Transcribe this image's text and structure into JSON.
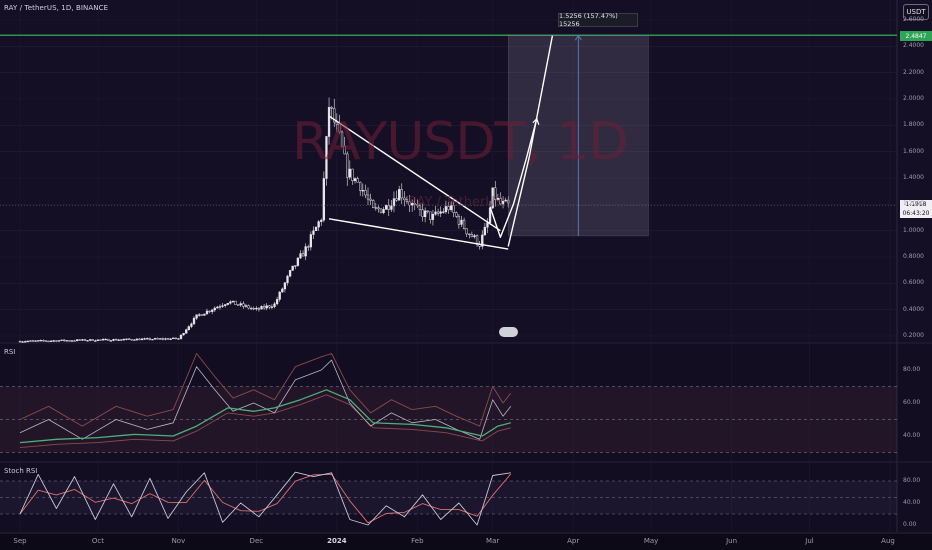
{
  "header": {
    "symbol_line": "RAY / TetherUS, 1D, BINANCE",
    "currency": "USDT",
    "watermark": "RAYUSDT, 1D",
    "watermark_sub": "RAY / TetherUS"
  },
  "price_tags": {
    "target": "2.4847",
    "current_price": "1.1918",
    "current_time": "06:43:20"
  },
  "measure_label": "1.5256 (157.47%) 15256",
  "indicators": {
    "rsi_label": "RSI",
    "stoch_label": "Stoch RSI"
  },
  "colors": {
    "background": "#0d0a17",
    "candle": "#e6e6ee",
    "target_line": "#34c05c",
    "rsi_line": "#b8b8c4",
    "rsi_ma": "#4cb07a",
    "rsi_envelope": "#8a4a52",
    "stoch_k": "#c8c8d4",
    "stoch_d": "#e07070",
    "projection": "#ffffff",
    "measure_arrow": "#5a78b0"
  },
  "chart_data": [
    {
      "type": "candlestick",
      "title": "RAY / TetherUS, 1D, BINANCE",
      "x_labels": [
        "Sep",
        "Oct",
        "Nov",
        "Dec",
        "2024",
        "Feb",
        "Mar",
        "Apr",
        "May",
        "Jun",
        "Jul",
        "Aug"
      ],
      "y_ticks": [
        "2.6000",
        "2.4000",
        "2.2000",
        "2.0000",
        "1.8000",
        "1.6000",
        "1.4000",
        "1.2000",
        "1.0000",
        "0.8000",
        "0.6000",
        "0.4000",
        "0.2000"
      ],
      "ylim": [
        0.2,
        2.6
      ],
      "close_series": [
        {
          "date": "2023-09-01",
          "close": 0.16
        },
        {
          "date": "2023-10-01",
          "close": 0.17
        },
        {
          "date": "2023-11-01",
          "close": 0.18
        },
        {
          "date": "2023-11-08",
          "close": 0.35
        },
        {
          "date": "2023-11-20",
          "close": 0.46
        },
        {
          "date": "2023-12-01",
          "close": 0.4
        },
        {
          "date": "2023-12-08",
          "close": 0.44
        },
        {
          "date": "2023-12-14",
          "close": 0.68
        },
        {
          "date": "2023-12-20",
          "close": 0.86
        },
        {
          "date": "2023-12-26",
          "close": 1.1
        },
        {
          "date": "2023-12-29",
          "close": 1.95
        },
        {
          "date": "2024-01-02",
          "close": 1.7
        },
        {
          "date": "2024-01-05",
          "close": 1.45
        },
        {
          "date": "2024-01-10",
          "close": 1.35
        },
        {
          "date": "2024-01-15",
          "close": 1.15
        },
        {
          "date": "2024-01-20",
          "close": 1.18
        },
        {
          "date": "2024-01-25",
          "close": 1.3
        },
        {
          "date": "2024-02-01",
          "close": 1.15
        },
        {
          "date": "2024-02-07",
          "close": 1.1
        },
        {
          "date": "2024-02-13",
          "close": 1.18
        },
        {
          "date": "2024-02-20",
          "close": 1.0
        },
        {
          "date": "2024-02-25",
          "close": 0.9
        },
        {
          "date": "2024-02-28",
          "close": 1.05
        },
        {
          "date": "2024-03-01",
          "close": 1.28
        },
        {
          "date": "2024-03-04",
          "close": 1.2
        },
        {
          "date": "2024-03-07",
          "close": 1.19
        }
      ],
      "last_price": 1.1918,
      "target_price": 2.4847,
      "measure_change": "1.5256 (157.47%) 15256",
      "pattern": "falling wedge",
      "wedge_upper": [
        {
          "date": "2023-12-29",
          "price": 1.87
        },
        {
          "date": "2024-03-04",
          "price": 1.0
        }
      ],
      "wedge_lower": [
        {
          "date": "2023-12-29",
          "price": 1.09
        },
        {
          "date": "2024-03-07",
          "price": 0.86
        }
      ],
      "projection": [
        {
          "date": "2024-02-29",
          "price": 1.18
        },
        {
          "date": "2024-03-04",
          "price": 0.95
        },
        {
          "date": "2024-03-09",
          "price": 1.2
        },
        {
          "date": "2024-03-14",
          "price": 1.55
        },
        {
          "date": "2024-03-18",
          "price": 1.85
        }
      ],
      "projection_b": [
        {
          "date": "2024-03-07",
          "price": 0.88
        },
        {
          "date": "2024-03-15",
          "price": 1.55
        },
        {
          "date": "2024-03-24",
          "price": 2.48
        }
      ],
      "measure_box": {
        "from_date": "2024-03-07",
        "to_date": "2024-04-30",
        "from_price": 0.96,
        "to_price": 2.4847
      }
    },
    {
      "type": "line",
      "title": "RSI",
      "y_ticks": [
        "80.00",
        "60.00",
        "40.00"
      ],
      "ylim": [
        30,
        90
      ],
      "bands": [
        70,
        50,
        30
      ],
      "rsi": [
        {
          "date": "2023-09-01",
          "value": 42
        },
        {
          "date": "2023-09-12",
          "value": 50
        },
        {
          "date": "2023-09-25",
          "value": 38
        },
        {
          "date": "2023-10-08",
          "value": 50
        },
        {
          "date": "2023-10-20",
          "value": 44
        },
        {
          "date": "2023-10-30",
          "value": 48
        },
        {
          "date": "2023-11-08",
          "value": 82
        },
        {
          "date": "2023-11-15",
          "value": 68
        },
        {
          "date": "2023-11-22",
          "value": 55
        },
        {
          "date": "2023-11-30",
          "value": 60
        },
        {
          "date": "2023-12-08",
          "value": 54
        },
        {
          "date": "2023-12-16",
          "value": 74
        },
        {
          "date": "2023-12-26",
          "value": 80
        },
        {
          "date": "2023-12-30",
          "value": 86
        },
        {
          "date": "2024-01-06",
          "value": 60
        },
        {
          "date": "2024-01-14",
          "value": 46
        },
        {
          "date": "2024-01-22",
          "value": 54
        },
        {
          "date": "2024-01-30",
          "value": 48
        },
        {
          "date": "2024-02-08",
          "value": 50
        },
        {
          "date": "2024-02-16",
          "value": 44
        },
        {
          "date": "2024-02-25",
          "value": 38
        },
        {
          "date": "2024-03-01",
          "value": 62
        },
        {
          "date": "2024-03-05",
          "value": 52
        },
        {
          "date": "2024-03-08",
          "value": 58
        }
      ],
      "rsi_ma": [
        {
          "date": "2023-09-01",
          "value": 36
        },
        {
          "date": "2023-09-15",
          "value": 38
        },
        {
          "date": "2023-10-01",
          "value": 39
        },
        {
          "date": "2023-10-15",
          "value": 41
        },
        {
          "date": "2023-10-30",
          "value": 40
        },
        {
          "date": "2023-11-08",
          "value": 46
        },
        {
          "date": "2023-11-20",
          "value": 57
        },
        {
          "date": "2023-11-30",
          "value": 55
        },
        {
          "date": "2023-12-08",
          "value": 57
        },
        {
          "date": "2023-12-18",
          "value": 62
        },
        {
          "date": "2023-12-28",
          "value": 68
        },
        {
          "date": "2024-01-06",
          "value": 62
        },
        {
          "date": "2024-01-15",
          "value": 48
        },
        {
          "date": "2024-01-30",
          "value": 47
        },
        {
          "date": "2024-02-12",
          "value": 45
        },
        {
          "date": "2024-02-26",
          "value": 40
        },
        {
          "date": "2024-03-03",
          "value": 46
        },
        {
          "date": "2024-03-08",
          "value": 48
        }
      ]
    },
    {
      "type": "line",
      "title": "Stoch RSI",
      "y_ticks": [
        "80.00",
        "40.00",
        "0.00"
      ],
      "ylim": [
        0,
        100
      ],
      "bands": [
        80,
        50,
        20
      ],
      "k": [
        {
          "date": "2023-09-01",
          "value": 20
        },
        {
          "date": "2023-09-08",
          "value": 92
        },
        {
          "date": "2023-09-15",
          "value": 30
        },
        {
          "date": "2023-09-22",
          "value": 88
        },
        {
          "date": "2023-09-30",
          "value": 10
        },
        {
          "date": "2023-10-07",
          "value": 75
        },
        {
          "date": "2023-10-14",
          "value": 15
        },
        {
          "date": "2023-10-21",
          "value": 85
        },
        {
          "date": "2023-10-28",
          "value": 12
        },
        {
          "date": "2023-11-04",
          "value": 60
        },
        {
          "date": "2023-11-11",
          "value": 95
        },
        {
          "date": "2023-11-18",
          "value": 5
        },
        {
          "date": "2023-11-25",
          "value": 40
        },
        {
          "date": "2023-12-02",
          "value": 15
        },
        {
          "date": "2023-12-09",
          "value": 55
        },
        {
          "date": "2023-12-16",
          "value": 96
        },
        {
          "date": "2023-12-23",
          "value": 88
        },
        {
          "date": "2023-12-30",
          "value": 95
        },
        {
          "date": "2024-01-06",
          "value": 10
        },
        {
          "date": "2024-01-13",
          "value": 0
        },
        {
          "date": "2024-01-20",
          "value": 35
        },
        {
          "date": "2024-01-27",
          "value": 15
        },
        {
          "date": "2024-02-03",
          "value": 55
        },
        {
          "date": "2024-02-10",
          "value": 10
        },
        {
          "date": "2024-02-17",
          "value": 40
        },
        {
          "date": "2024-02-24",
          "value": 0
        },
        {
          "date": "2024-03-01",
          "value": 90
        },
        {
          "date": "2024-03-08",
          "value": 95
        }
      ]
    }
  ]
}
